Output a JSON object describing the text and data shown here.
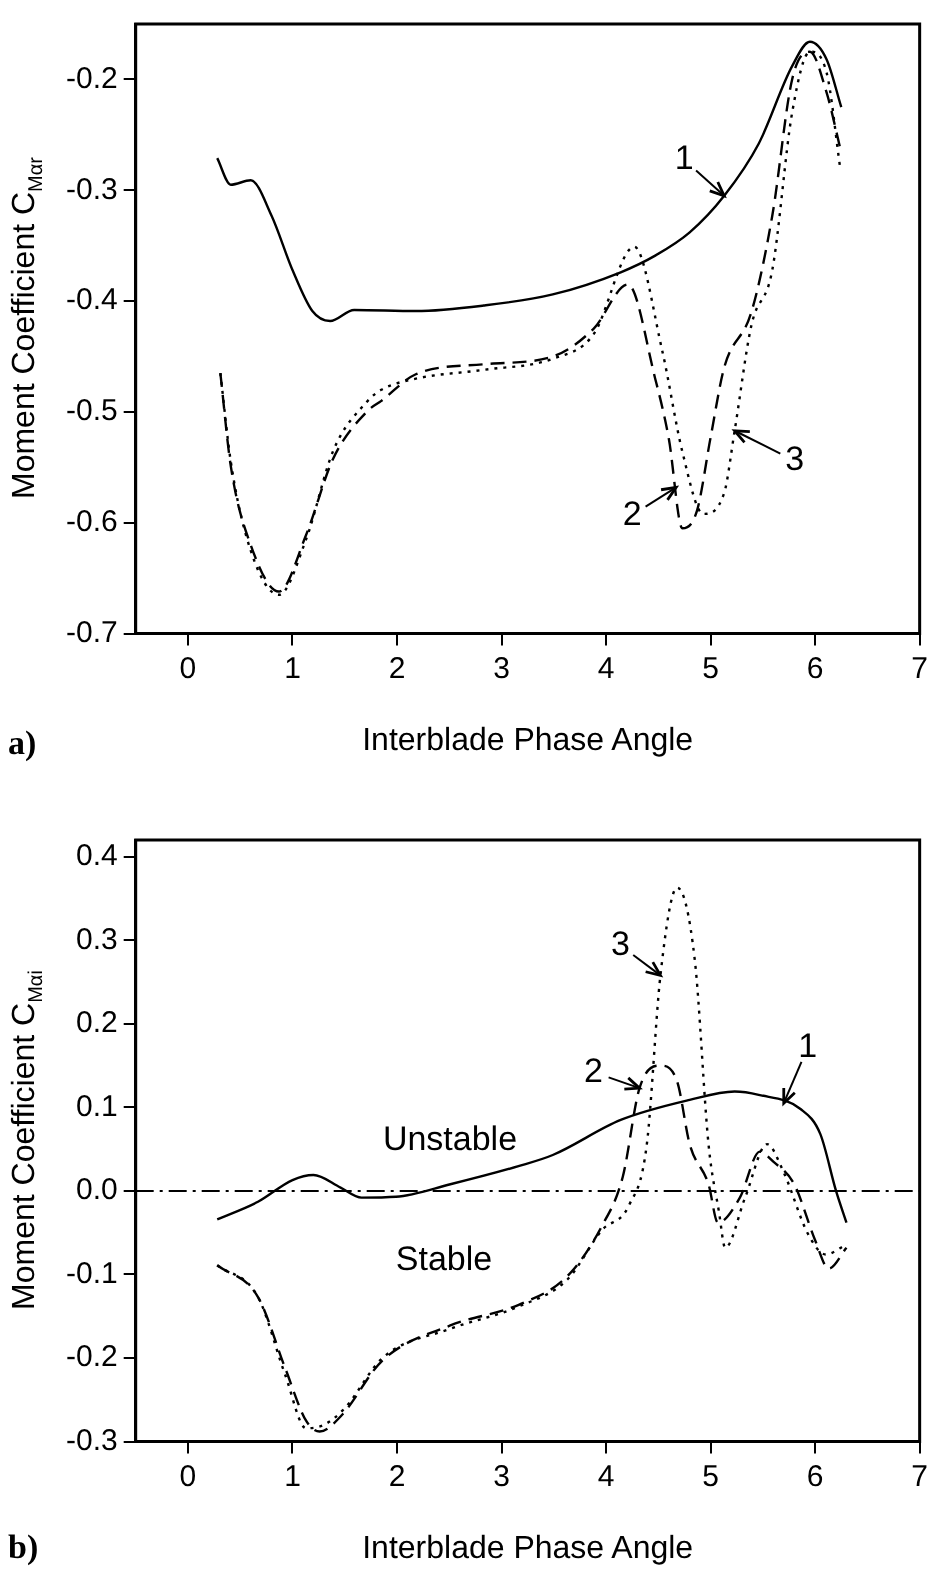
{
  "chart_data": [
    {
      "type": "line",
      "xlabel": "Interblade Phase Angle",
      "ylabel": "Moment Coefficient C$_{Mαr}$",
      "xlim": [
        -0.5,
        7
      ],
      "xticks": [
        0,
        1,
        2,
        3,
        4,
        5,
        6,
        7
      ],
      "ylim": [
        -0.7,
        -0.15
      ],
      "yticks": [
        -0.7,
        -0.6,
        -0.5,
        -0.4,
        -0.3,
        -0.2
      ],
      "grid": false,
      "series": [
        {
          "color": "#000000",
          "line_style": "solid",
          "x": [
            0.28,
            0.41,
            0.6,
            0.8,
            1.0,
            1.19,
            1.36,
            1.59,
            2.18,
            2.83,
            3.49,
            4.14,
            4.47,
            4.8,
            5.13,
            5.46,
            5.78,
            5.95,
            6.11,
            6.25
          ],
          "values": [
            -0.271,
            -0.295,
            -0.291,
            -0.323,
            -0.372,
            -0.409,
            -0.418,
            -0.408,
            -0.409,
            -0.404,
            -0.394,
            -0.374,
            -0.359,
            -0.338,
            -0.305,
            -0.258,
            -0.188,
            -0.166,
            -0.182,
            -0.225
          ]
        },
        {
          "color": "#000000",
          "line_style": "dashed",
          "x": [
            0.31,
            0.41,
            0.6,
            0.87,
            1.13,
            1.39,
            1.72,
            1.85,
            2.18,
            2.83,
            3.49,
            3.88,
            4.21,
            4.47,
            4.6,
            4.73,
            4.87,
            5.0,
            5.13,
            5.39,
            5.59,
            5.78,
            5.95,
            6.11,
            6.24
          ],
          "values": [
            -0.465,
            -0.549,
            -0.62,
            -0.662,
            -0.611,
            -0.542,
            -0.499,
            -0.49,
            -0.466,
            -0.457,
            -0.45,
            -0.425,
            -0.385,
            -0.47,
            -0.524,
            -0.605,
            -0.589,
            -0.523,
            -0.46,
            -0.41,
            -0.323,
            -0.2,
            -0.175,
            -0.212,
            -0.262
          ]
        },
        {
          "color": "#000000",
          "line_style": "dotted",
          "x": [
            0.31,
            0.41,
            0.6,
            0.87,
            1.13,
            1.39,
            1.72,
            1.85,
            2.18,
            2.83,
            3.49,
            3.88,
            4.27,
            4.54,
            4.73,
            4.93,
            5.13,
            5.23,
            5.39,
            5.59,
            5.78,
            5.95,
            6.11,
            6.24
          ],
          "values": [
            -0.465,
            -0.545,
            -0.625,
            -0.665,
            -0.615,
            -0.535,
            -0.49,
            -0.48,
            -0.47,
            -0.462,
            -0.452,
            -0.43,
            -0.351,
            -0.446,
            -0.536,
            -0.592,
            -0.573,
            -0.517,
            -0.422,
            -0.372,
            -0.23,
            -0.175,
            -0.194,
            -0.28
          ]
        }
      ],
      "annotations": [
        {
          "text": "1",
          "x": 5.13,
          "y": -0.305
        },
        {
          "text": "2",
          "x": 4.67,
          "y": -0.568
        },
        {
          "text": "3",
          "x": 5.23,
          "y": -0.517
        },
        "a)"
      ]
    },
    {
      "type": "line",
      "xlabel": "Interblade Phase Angle",
      "ylabel": "Moment Coefficient C$_{Mαi}$",
      "xlim": [
        -0.5,
        7
      ],
      "xticks": [
        0,
        1,
        2,
        3,
        4,
        5,
        6,
        7
      ],
      "ylim": [
        -0.3,
        0.42
      ],
      "yticks": [
        -0.3,
        -0.2,
        -0.1,
        {
          "value": 0,
          "label": "0.0"
        },
        0.1,
        0.2,
        0.3,
        0.4
      ],
      "grid": false,
      "series": [
        {
          "color": "#000000",
          "line_style": "solid",
          "x": [
            0.28,
            0.67,
            1.0,
            1.2,
            1.46,
            1.66,
            1.99,
            2.51,
            3.17,
            3.49,
            4.14,
            4.8,
            5.23,
            5.46,
            5.86,
            6.05,
            6.2,
            6.3
          ],
          "values": [
            -0.034,
            -0.013,
            0.013,
            0.019,
            0.004,
            -0.008,
            -0.007,
            0.008,
            0.03,
            0.043,
            0.085,
            0.109,
            0.119,
            0.115,
            0.098,
            0.068,
            0.0,
            -0.038
          ]
        },
        {
          "color": "#000000",
          "line_style": "dashed",
          "x": [
            0.28,
            0.67,
            0.93,
            1.13,
            1.26,
            1.46,
            1.86,
            2.51,
            3.17,
            3.63,
            3.96,
            4.16,
            4.32,
            4.52,
            4.68,
            4.8,
            4.98,
            5.07,
            5.28,
            5.47,
            5.6,
            5.8,
            6.0,
            6.13,
            6.3
          ],
          "values": [
            -0.089,
            -0.127,
            -0.212,
            -0.275,
            -0.288,
            -0.27,
            -0.203,
            -0.161,
            -0.136,
            -0.102,
            -0.042,
            0.017,
            0.123,
            0.15,
            0.131,
            0.056,
            0.008,
            -0.038,
            -0.008,
            0.047,
            0.035,
            0.008,
            -0.059,
            -0.093,
            -0.068
          ]
        },
        {
          "color": "#000000",
          "line_style": "dotted",
          "x": [
            0.28,
            0.67,
            0.93,
            1.13,
            1.3,
            1.5,
            1.86,
            2.51,
            3.17,
            3.63,
            3.96,
            4.22,
            4.39,
            4.52,
            4.68,
            4.85,
            4.98,
            5.08,
            5.14,
            5.33,
            5.54,
            5.7,
            5.93,
            6.1,
            6.3
          ],
          "values": [
            -0.089,
            -0.127,
            -0.22,
            -0.284,
            -0.28,
            -0.26,
            -0.2,
            -0.165,
            -0.138,
            -0.106,
            -0.047,
            -0.017,
            0.056,
            0.258,
            0.363,
            0.275,
            0.056,
            -0.025,
            -0.068,
            -0.008,
            0.056,
            0.022,
            -0.051,
            -0.076,
            -0.064
          ]
        }
      ],
      "ref_lines": [
        {
          "axis": "y",
          "value": 0,
          "color": "#000000",
          "line_style": "dashdot"
        }
      ],
      "annotations": [
        "Unstable",
        "Stable",
        {
          "text": "1",
          "x": 5.7,
          "y": 0.105
        },
        {
          "text": "2",
          "x": 4.32,
          "y": 0.123
        },
        {
          "text": "3",
          "x": 4.52,
          "y": 0.258
        },
        "b)"
      ]
    }
  ]
}
